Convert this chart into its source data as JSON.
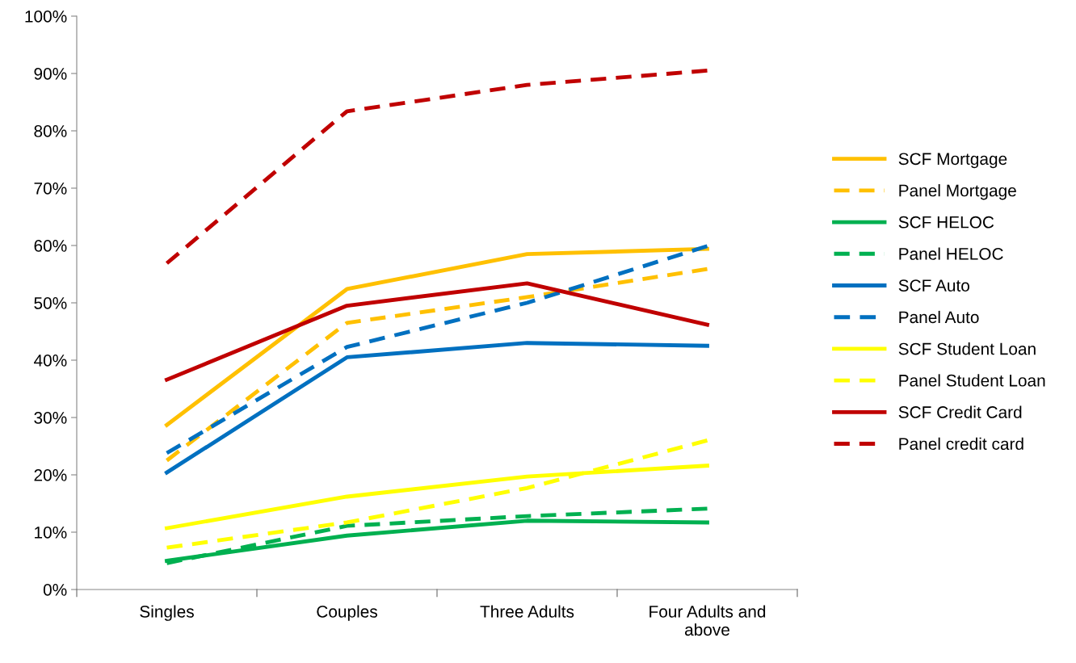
{
  "chart_data": {
    "type": "line",
    "categories": [
      "Singles",
      "Couples",
      "Three Adults",
      "Four Adults and\nabove"
    ],
    "ylim": [
      0,
      100
    ],
    "yticks": [
      {
        "value": 0,
        "label": "0%"
      },
      {
        "value": 10,
        "label": "10%"
      },
      {
        "value": 20,
        "label": "20%"
      },
      {
        "value": 30,
        "label": "30%"
      },
      {
        "value": 40,
        "label": "40%"
      },
      {
        "value": 50,
        "label": "50%"
      },
      {
        "value": 60,
        "label": "60%"
      },
      {
        "value": 70,
        "label": "70%"
      },
      {
        "value": 80,
        "label": "80%"
      },
      {
        "value": 90,
        "label": "90%"
      },
      {
        "value": 100,
        "label": "100%"
      }
    ],
    "grid": false,
    "legend": "right",
    "marker": "none",
    "series": [
      {
        "name": "SCF Mortgage",
        "color": "#ffc000",
        "line_style": "solid",
        "values": [
          28.7,
          52.4,
          58.5,
          59.4
        ]
      },
      {
        "name": "Panel Mortgage",
        "color": "#ffc000",
        "line_style": "dashed",
        "values": [
          22.5,
          46.5,
          51,
          55.9
        ]
      },
      {
        "name": "SCF HELOC",
        "color": "#00b050",
        "line_style": "solid",
        "values": [
          5.0,
          9.4,
          12.0,
          11.7
        ]
      },
      {
        "name": "Panel HELOC",
        "color": "#00b050",
        "line_style": "dashed",
        "values": [
          4.6,
          11.1,
          12.8,
          14.1
        ]
      },
      {
        "name": "SCF Auto",
        "color": "#0070c0",
        "line_style": "solid",
        "values": [
          20.4,
          40.5,
          43.0,
          42.5
        ]
      },
      {
        "name": "Panel Auto",
        "color": "#0070c0",
        "line_style": "dashed",
        "values": [
          23.8,
          42.3,
          50,
          59.9
        ]
      },
      {
        "name": "SCF Student Loan",
        "color": "#ffff00",
        "line_style": "solid",
        "values": [
          10.7,
          16.2,
          19.7,
          21.6
        ]
      },
      {
        "name": "Panel Student Loan",
        "color": "#ffff00",
        "line_style": "dashed",
        "values": [
          7.3,
          11.7,
          17.7,
          26
        ]
      },
      {
        "name": "SCF Credit Card",
        "color": "#c00000",
        "line_style": "solid",
        "values": [
          36.6,
          49.5,
          53.4,
          46.2
        ]
      },
      {
        "name": "Panel credit card",
        "color": "#c00000",
        "line_style": "dashed",
        "values": [
          56.9,
          83.4,
          88,
          90.5
        ]
      }
    ]
  }
}
